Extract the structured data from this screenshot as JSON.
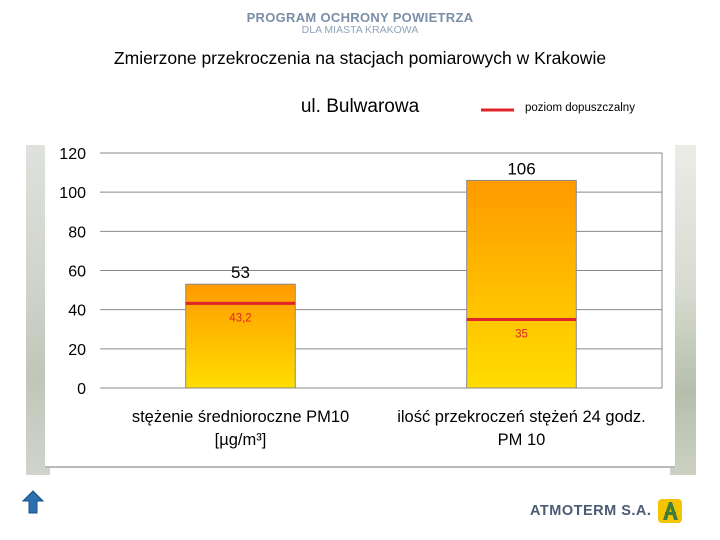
{
  "header": {
    "program_title": "PROGRAM OCHRONY POWIETRZA",
    "program_subtitle": "DLA MIASTA KRAKOWA"
  },
  "slide_title": "Zmierzone przekroczenia na stacjach pomiarowych w Krakowie",
  "logo_text": "ATMOTERM S.A.",
  "colors": {
    "bar_top": "#ff9a00",
    "bar_bottom": "#ffdd00",
    "limit_line": "#e0242a",
    "header": "#7a8fa6",
    "logo": "#4a5c74",
    "nav_arrow": "#2a6fb0"
  },
  "icons": {
    "nav": "up-arrow-icon",
    "logo": "atmoterm-logo-icon"
  },
  "chart_data": {
    "type": "bar",
    "title": "ul. Bulwarowa",
    "categories": [
      [
        "stężenie średnioroczne PM10",
        "[µg/m³]"
      ],
      [
        "ilość przekroczeń stężeń 24 godz.",
        "PM 10"
      ]
    ],
    "values": [
      53,
      106
    ],
    "value_labels": [
      "53",
      "106"
    ],
    "limits": [
      43.2,
      35
    ],
    "limit_labels": [
      "43,2",
      "35"
    ],
    "legend": {
      "label": "poziom dopuszczalny",
      "position": "top-right"
    },
    "ylim": [
      0,
      120
    ],
    "yticks": [
      0,
      20,
      40,
      60,
      80,
      100,
      120
    ],
    "grid": true
  }
}
